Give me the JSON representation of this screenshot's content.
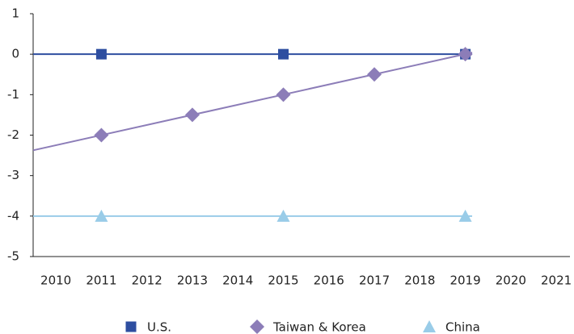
{
  "chart_data": {
    "type": "line",
    "xlim": [
      2009.5,
      2021.3
    ],
    "xticks": [
      2010,
      2011,
      2012,
      2013,
      2014,
      2015,
      2016,
      2017,
      2018,
      2019,
      2020,
      2021
    ],
    "ylim": [
      -5,
      1
    ],
    "yticks": [
      -5,
      -4,
      -3,
      -2,
      -1,
      0,
      1
    ],
    "legend": "bottom",
    "series": [
      {
        "name": "U.S.",
        "color": "#2e4ea0",
        "marker": "square",
        "x": [
          2011,
          2015,
          2019
        ],
        "values": [
          0,
          0,
          0
        ],
        "trend": {
          "x": [
            2009.5,
            2019.15
          ],
          "values": [
            0,
            0
          ]
        }
      },
      {
        "name": "Taiwan & Korea",
        "color": "#8c7db8",
        "marker": "diamond",
        "x": [
          2011,
          2013,
          2015,
          2017,
          2019
        ],
        "values": [
          -2,
          -1.5,
          -1,
          -0.5,
          0
        ],
        "trend": {
          "x": [
            2009.5,
            2019.15
          ],
          "values": [
            -2.375,
            0.04
          ]
        }
      },
      {
        "name": "China",
        "color": "#99cce8",
        "marker": "triangle",
        "x": [
          2011,
          2015,
          2019
        ],
        "values": [
          -4,
          -4,
          -4
        ],
        "trend": {
          "x": [
            2009.5,
            2019.15
          ],
          "values": [
            -4,
            -4
          ]
        }
      }
    ]
  }
}
